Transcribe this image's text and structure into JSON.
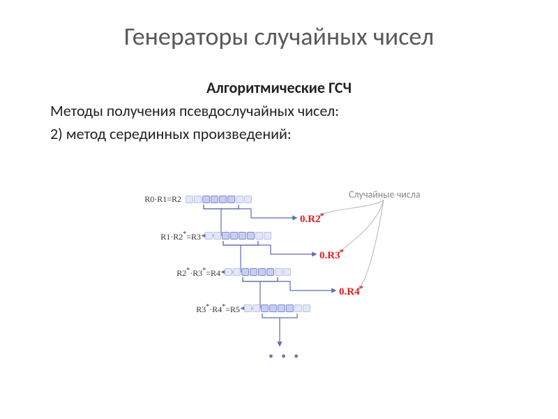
{
  "title": {
    "text": "Генераторы случайных чисел",
    "fontsize": 36,
    "color": "#595959"
  },
  "subtitle": {
    "text": "Алгоритмические ГСЧ",
    "fontsize": 22,
    "color": "#222"
  },
  "line1": {
    "text": "Методы получения псевдослучайных чисел:",
    "fontsize": 22,
    "color": "#222"
  },
  "line2": {
    "text": "2) метод серединных произведений:",
    "fontsize": 22,
    "color": "#222"
  },
  "annotation": {
    "text": "Случайные числа",
    "fontsize": 14,
    "color": "#888888"
  },
  "diagram": {
    "cell_size": 11,
    "row_gap": 52,
    "stair_indent": 28,
    "cells_per_row": 8,
    "pale_fill": "#e3e7f6",
    "pale_border": "#b9c2e6",
    "mid_fill": "#c7cef0",
    "mid_border": "#7f8dce",
    "selected_count": 4,
    "flow_arrow_color": "#5d6cae",
    "flow_arrow_width": 1.2,
    "annot_arrow_color": "#b5b5b5",
    "formula_fontsize": 12,
    "result_fontsize": 15,
    "result_color": "#e31b1b",
    "rows": [
      {
        "formula_html": "R0·R1=R2",
        "output": "0.R2",
        "star": true
      },
      {
        "formula_html": "R1·R2<sup>*</sup>=R3",
        "output": "0.R3",
        "star": true
      },
      {
        "formula_html": "R2<sup>*</sup>·R3<sup>*</sup>=R4",
        "output": "0.R4",
        "star": true
      },
      {
        "formula_html": "R3<sup>*</sup>·R4<sup>*</sup>=R5",
        "output": "",
        "star": false
      }
    ]
  },
  "background_color": "#ffffff"
}
